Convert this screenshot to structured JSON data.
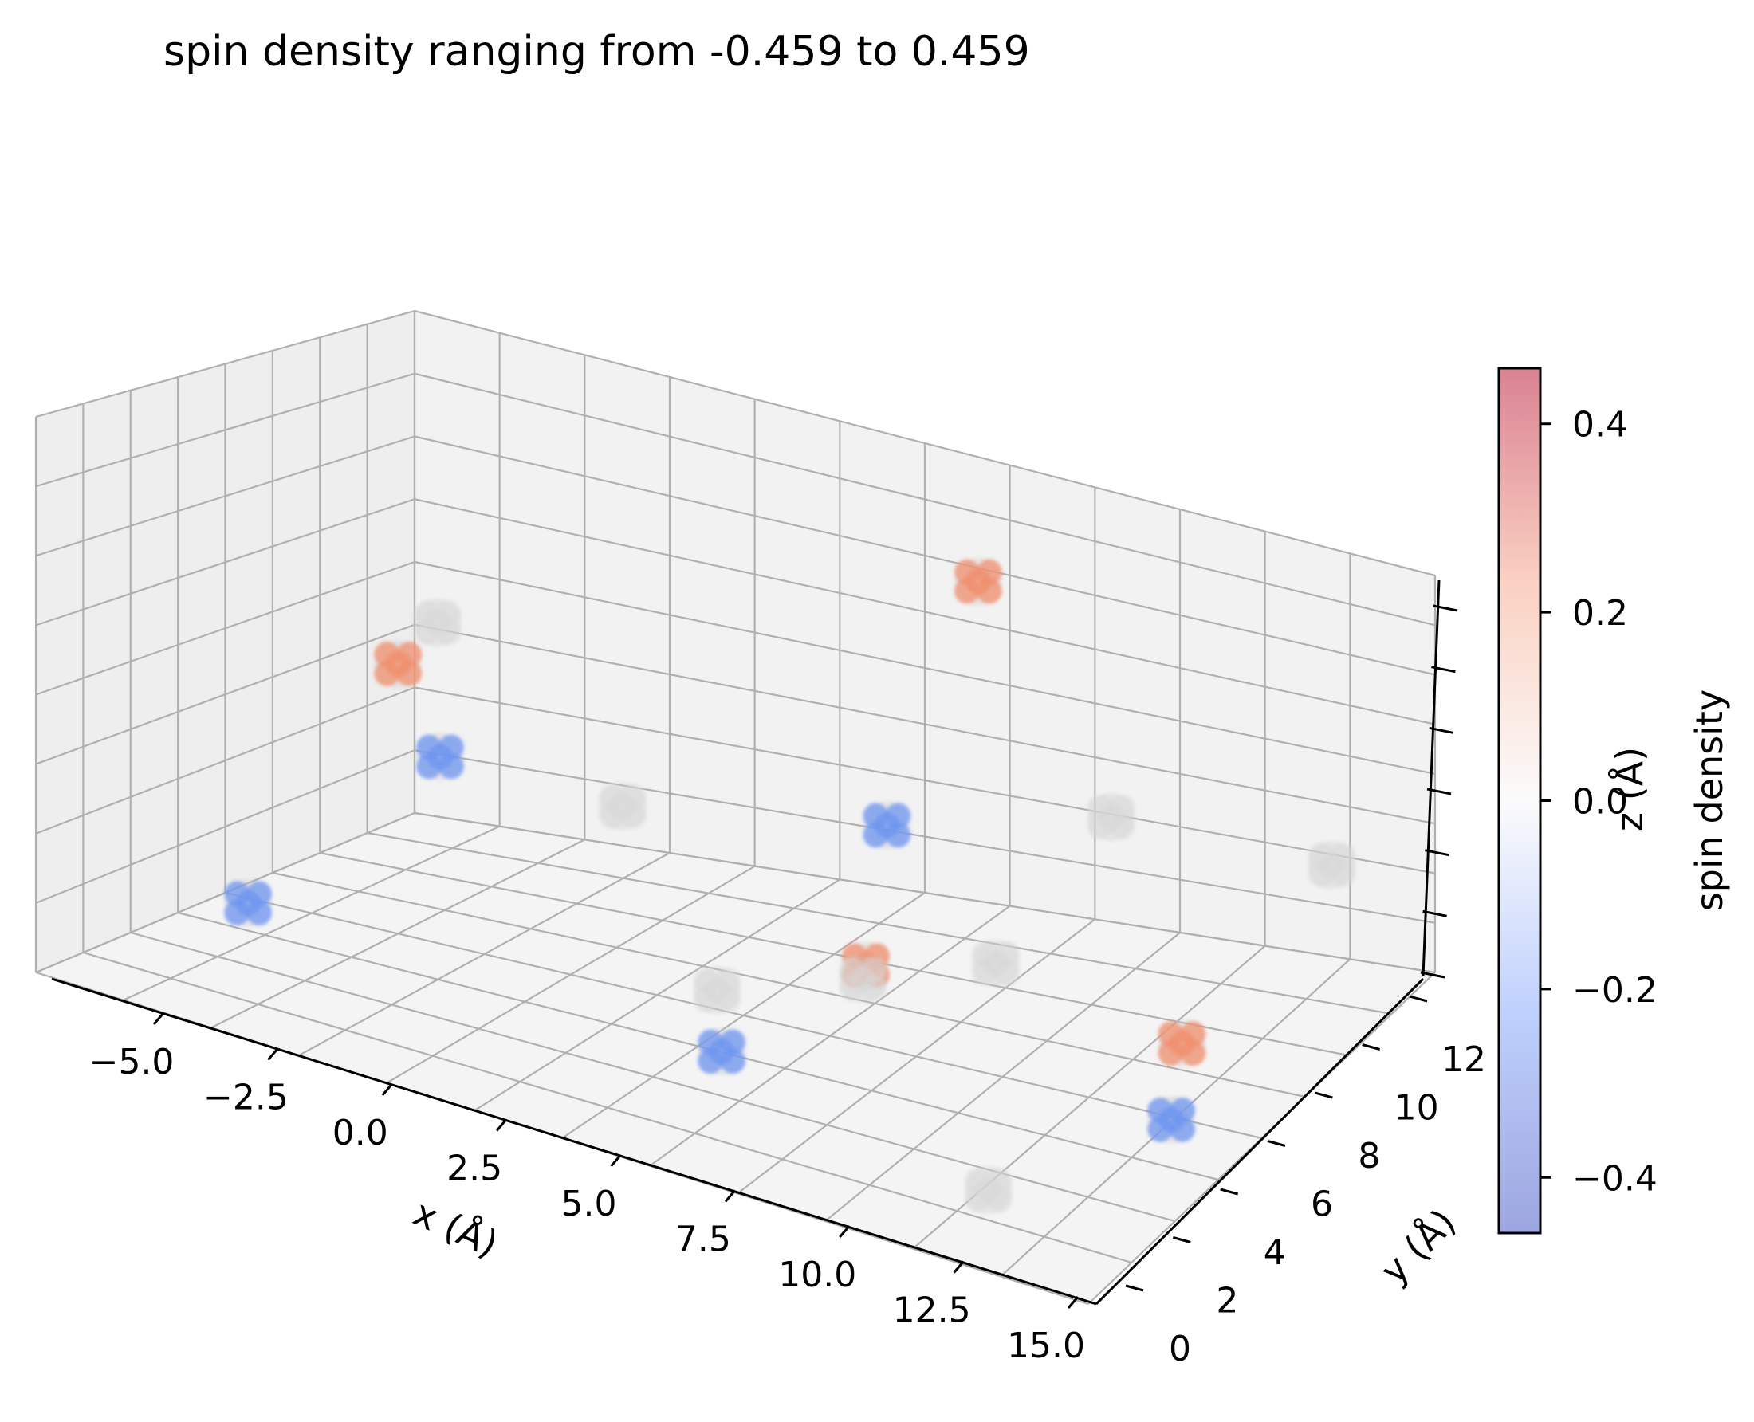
{
  "chart_data": {
    "type": "scatter",
    "projection": "3d",
    "title": "spin density ranging from -0.459 to 0.459",
    "xlabel": "x (Å)",
    "ylabel": "y (Å)",
    "zlabel": "z (Å)",
    "x_ticks": [
      "−5.0",
      "−2.5",
      "0.0",
      "2.5",
      "5.0",
      "7.5",
      "10.0",
      "12.5",
      "15.0"
    ],
    "y_ticks": [
      "0",
      "2",
      "4",
      "6",
      "8",
      "10",
      "12"
    ],
    "xlim": [
      -6.5,
      15.5
    ],
    "ylim": [
      -0.5,
      12.5
    ],
    "grid": true,
    "colormap": "coolwarm",
    "colorbar": {
      "label": "spin density",
      "range": [
        -0.459,
        0.459
      ],
      "ticks": [
        "0.4",
        "0.2",
        "0.0",
        "−0.2",
        "−0.4"
      ],
      "tick_values": [
        0.4,
        0.2,
        0.0,
        -0.2,
        -0.4
      ]
    },
    "clusters": [
      {
        "x": 6.5,
        "y": 10.5,
        "z": 0.9,
        "spin": 0.3
      },
      {
        "x": -3.8,
        "y": 7.5,
        "z": 0.5,
        "spin": 0.3
      },
      {
        "x": -2.8,
        "y": 7.3,
        "z": 0.35,
        "spin": -0.3
      },
      {
        "x": 5.2,
        "y": 9.5,
        "z": 0.4,
        "spin": -0.35
      },
      {
        "x": 7.5,
        "y": 5.0,
        "z": 0.3,
        "spin": 0.32
      },
      {
        "x": 13.5,
        "y": 6.0,
        "z": 0.3,
        "spin": 0.34
      },
      {
        "x": 13.4,
        "y": 5.8,
        "z": 0.15,
        "spin": -0.3
      },
      {
        "x": 6.8,
        "y": 1.2,
        "z": 0.2,
        "spin": -0.33
      },
      {
        "x": -4.5,
        "y": 3.5,
        "z": 0.1,
        "spin": -0.1
      },
      {
        "x": -4.5,
        "y": 10.0,
        "z": 0.5,
        "spin": 0.0
      },
      {
        "x": 5.0,
        "y": 9.0,
        "z": 0.1,
        "spin": 0.0
      },
      {
        "x": 10.5,
        "y": 8.5,
        "z": 0.6,
        "spin": 0.0
      },
      {
        "x": 5.0,
        "y": 4.0,
        "z": 0.2,
        "spin": 0.0
      },
      {
        "x": 12.5,
        "y": 1.0,
        "z": 0.1,
        "spin": 0.0
      },
      {
        "x": 1.5,
        "y": 6.5,
        "z": 0.4,
        "spin": 0.0
      },
      {
        "x": 9.0,
        "y": 7.0,
        "z": 0.3,
        "spin": 0.0
      },
      {
        "x": 14.5,
        "y": 9.5,
        "z": 0.6,
        "spin": 0.0
      }
    ]
  }
}
